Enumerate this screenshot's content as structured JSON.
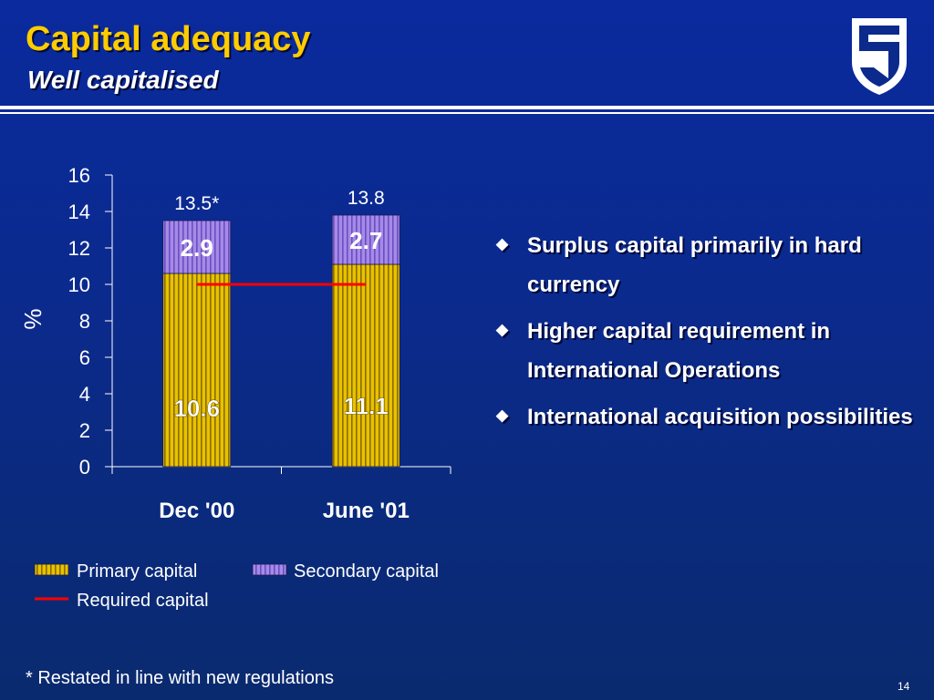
{
  "header": {
    "title": "Capital adequacy",
    "subtitle": "Well capitalised"
  },
  "chart_data": {
    "type": "bar",
    "stacked": true,
    "categories": [
      "Dec '00",
      "June '01"
    ],
    "series": [
      {
        "name": "Primary capital",
        "values": [
          10.6,
          11.1
        ],
        "color": "#d9b400"
      },
      {
        "name": "Secondary capital",
        "values": [
          2.9,
          2.7
        ],
        "color": "#9a7ee0"
      }
    ],
    "totals": [
      "13.5*",
      "13.8"
    ],
    "required_capital": {
      "name": "Required capital",
      "value": 10,
      "color": "#ff0000"
    },
    "ylabel": "%",
    "ylim": [
      0,
      16
    ],
    "yticks": [
      0,
      2,
      4,
      6,
      8,
      10,
      12,
      14,
      16
    ],
    "grid": false,
    "legend_position": "bottom"
  },
  "bullets": [
    "Surplus capital primarily in hard currency",
    "Higher capital requirement in International Operations",
    "International acquisition possibilities"
  ],
  "footnote": "* Restated in line with new regulations",
  "page_number": "14",
  "icons": {
    "logo": "shield-logo-icon",
    "bullet": "diamond-bullet-icon"
  }
}
